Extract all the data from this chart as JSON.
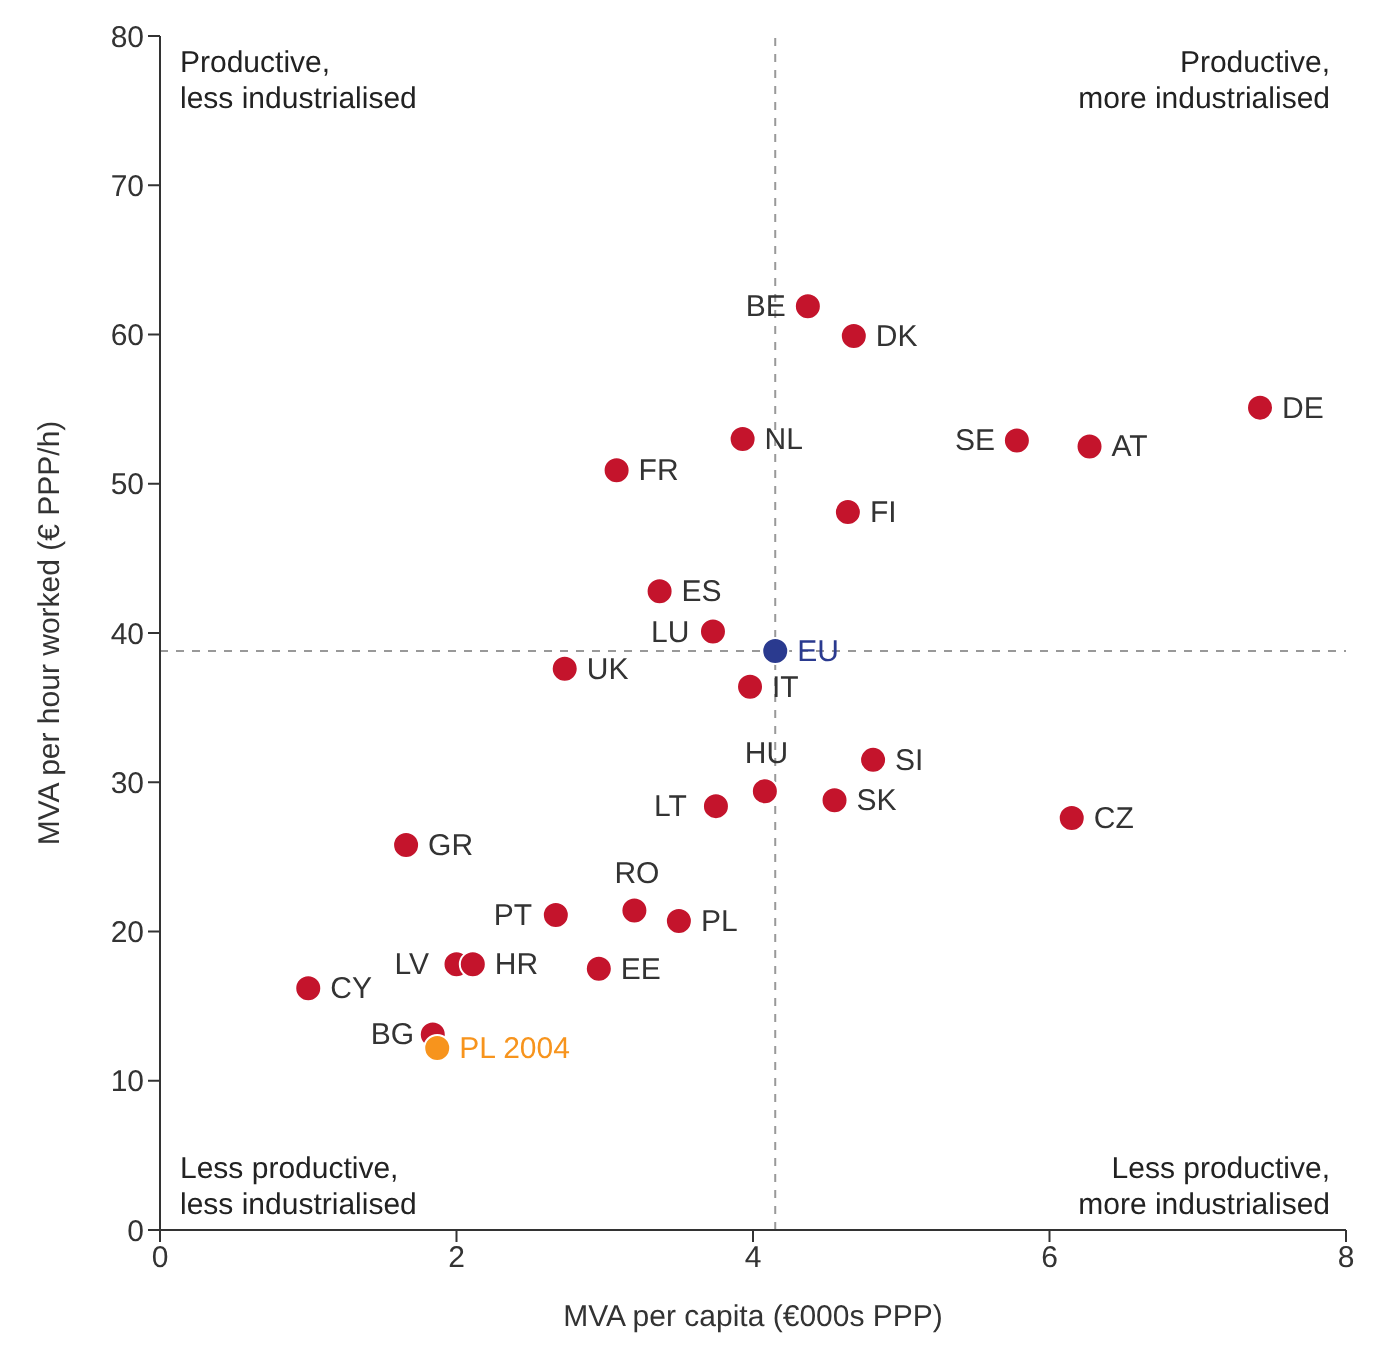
{
  "chart_data": {
    "type": "scatter",
    "xlabel": "MVA per capita (€000s PPP)",
    "ylabel": "MVA per hour worked (€ PPP/h)",
    "xlim": [
      0,
      8
    ],
    "xticks": [
      0,
      2,
      4,
      6,
      8
    ],
    "ylim": [
      0,
      80
    ],
    "yticks": [
      0,
      10,
      20,
      30,
      40,
      50,
      60,
      70,
      80
    ],
    "marker": "circle",
    "series": [
      {
        "name": "BE",
        "color": "#c4142c",
        "x": [
          4.37
        ],
        "values": [
          61.9
        ]
      },
      {
        "name": "DK",
        "color": "#c4142c",
        "x": [
          4.68
        ],
        "values": [
          59.9
        ]
      },
      {
        "name": "DE",
        "color": "#c4142c",
        "x": [
          7.42
        ],
        "values": [
          55.1
        ]
      },
      {
        "name": "NL",
        "color": "#c4142c",
        "x": [
          3.93
        ],
        "values": [
          53.0
        ]
      },
      {
        "name": "SE",
        "color": "#c4142c",
        "x": [
          5.78
        ],
        "values": [
          52.9
        ]
      },
      {
        "name": "AT",
        "color": "#c4142c",
        "x": [
          6.27
        ],
        "values": [
          52.5
        ]
      },
      {
        "name": "FR",
        "color": "#c4142c",
        "x": [
          3.08
        ],
        "values": [
          50.9
        ]
      },
      {
        "name": "FI",
        "color": "#c4142c",
        "x": [
          4.64
        ],
        "values": [
          48.1
        ]
      },
      {
        "name": "ES",
        "color": "#c4142c",
        "x": [
          3.37
        ],
        "values": [
          42.8
        ]
      },
      {
        "name": "LU",
        "color": "#c4142c",
        "x": [
          3.73
        ],
        "values": [
          40.1
        ]
      },
      {
        "name": "EU",
        "color": "#2a3a8f",
        "x": [
          4.15
        ],
        "values": [
          38.8
        ]
      },
      {
        "name": "UK",
        "color": "#c4142c",
        "x": [
          2.73
        ],
        "values": [
          37.6
        ]
      },
      {
        "name": "IT",
        "color": "#c4142c",
        "x": [
          3.98
        ],
        "values": [
          36.4
        ]
      },
      {
        "name": "SI",
        "color": "#c4142c",
        "x": [
          4.81
        ],
        "values": [
          31.5
        ]
      },
      {
        "name": "HU",
        "color": "#c4142c",
        "x": [
          4.08
        ],
        "values": [
          29.4
        ]
      },
      {
        "name": "SK",
        "color": "#c4142c",
        "x": [
          4.55
        ],
        "values": [
          28.8
        ]
      },
      {
        "name": "LT",
        "color": "#c4142c",
        "x": [
          3.75
        ],
        "values": [
          28.4
        ]
      },
      {
        "name": "CZ",
        "color": "#c4142c",
        "x": [
          6.15
        ],
        "values": [
          27.6
        ]
      },
      {
        "name": "GR",
        "color": "#c4142c",
        "x": [
          1.66
        ],
        "values": [
          25.8
        ]
      },
      {
        "name": "RO",
        "color": "#c4142c",
        "x": [
          3.2
        ],
        "values": [
          21.4
        ]
      },
      {
        "name": "PT",
        "color": "#c4142c",
        "x": [
          2.67
        ],
        "values": [
          21.1
        ]
      },
      {
        "name": "PL",
        "color": "#c4142c",
        "x": [
          3.5
        ],
        "values": [
          20.7
        ]
      },
      {
        "name": "LV",
        "color": "#c4142c",
        "x": [
          2.0
        ],
        "values": [
          17.8
        ]
      },
      {
        "name": "HR",
        "color": "#c4142c",
        "x": [
          2.11
        ],
        "values": [
          17.8
        ]
      },
      {
        "name": "EE",
        "color": "#c4142c",
        "x": [
          2.96
        ],
        "values": [
          17.5
        ]
      },
      {
        "name": "CY",
        "color": "#c4142c",
        "x": [
          1.0
        ],
        "values": [
          16.2
        ]
      },
      {
        "name": "BG",
        "color": "#c4142c",
        "x": [
          1.84
        ],
        "values": [
          13.1
        ]
      },
      {
        "name": "PL 2004",
        "color": "#f7941d",
        "x": [
          1.87
        ],
        "values": [
          12.2
        ]
      }
    ],
    "ref_lines": [
      {
        "axis": "x",
        "value": 4.15,
        "color": "#999999",
        "line_style": "dashed"
      },
      {
        "axis": "y",
        "value": 38.8,
        "color": "#999999",
        "line_style": "dashed"
      }
    ],
    "annotations": [
      "Productive,\nless industrialised",
      "Productive,\nmore industrialised",
      "Less productive,\nless industrialised",
      "Less productive,\nmore industrialised"
    ]
  }
}
